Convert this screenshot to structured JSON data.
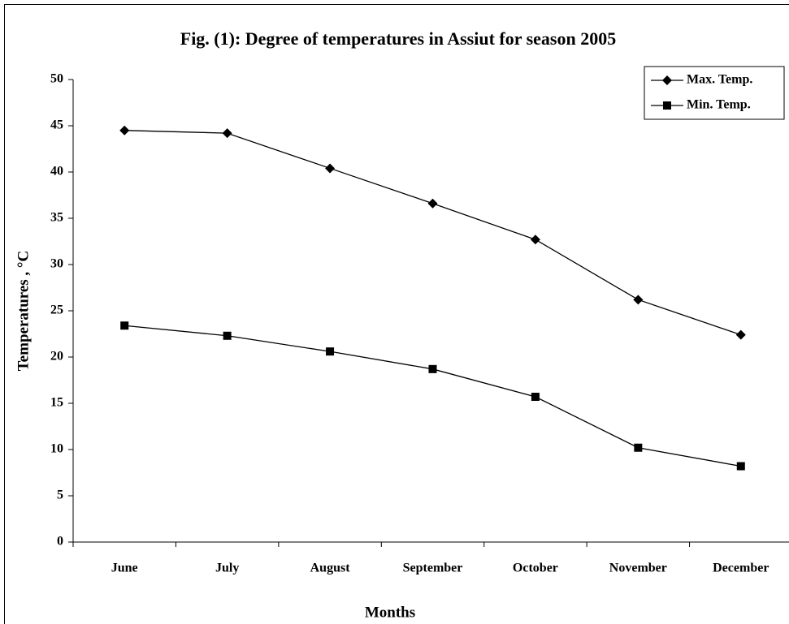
{
  "chart_data": {
    "type": "line",
    "title": "Fig. (1): Degree of temperatures in Assiut for season 2005",
    "x_label": "Months",
    "y_label": "Temperatures , °C",
    "categories": [
      "June",
      "July",
      "August",
      "September",
      "October",
      "November",
      "December"
    ],
    "series": [
      {
        "name": "Max. Temp.",
        "color": "#000000",
        "marker": "diamond",
        "values": [
          44.5,
          44.2,
          40.4,
          36.6,
          32.7,
          26.2,
          22.4
        ]
      },
      {
        "name": "Min. Temp.",
        "color": "#000000",
        "marker": "square",
        "values": [
          23.4,
          22.3,
          20.6,
          18.7,
          15.7,
          10.2,
          8.2
        ]
      }
    ],
    "ylim": [
      0,
      50
    ],
    "yticks": [
      0,
      5,
      10,
      15,
      20,
      25,
      30,
      35,
      40,
      45,
      50
    ],
    "grid": false,
    "legend": "upper right"
  }
}
